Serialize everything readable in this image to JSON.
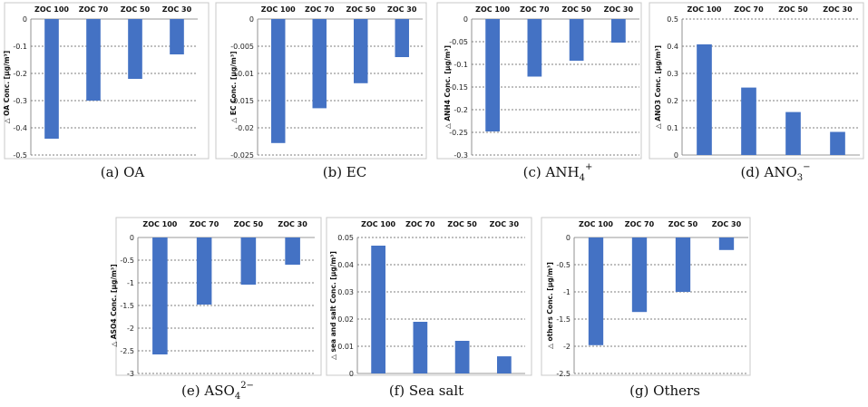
{
  "bar_color": "#4472c4",
  "chart_data": [
    {
      "id": "oa",
      "type": "bar",
      "categories": [
        "ZOC 100",
        "ZOC 70",
        "ZOC 50",
        "ZOC 30"
      ],
      "values": [
        -0.44,
        -0.3,
        -0.22,
        -0.13
      ],
      "ylim": [
        -0.5,
        0
      ],
      "yticks": [
        "0",
        "-0.1",
        "-0.2",
        "-0.3",
        "-0.4",
        "-0.5"
      ],
      "ylabel": "△ OA Conc. [µg/m³]",
      "caption": "(a) OA",
      "caption_main": "(a) OA",
      "caption_sub": "",
      "caption_sup": "",
      "caption_tail": ""
    },
    {
      "id": "ec",
      "type": "bar",
      "categories": [
        "ZOC 100",
        "ZOC 70",
        "ZOC 50",
        "ZOC 30"
      ],
      "values": [
        -0.0228,
        -0.0164,
        -0.0118,
        -0.007
      ],
      "ylim": [
        -0.025,
        0
      ],
      "yticks": [
        "0",
        "-0.005",
        "-0.01",
        "-0.015",
        "-0.02",
        "-0.025"
      ],
      "ylabel": "△ EC Conc. [µg/m³]",
      "caption": "(b) EC",
      "caption_main": "(b) EC",
      "caption_sub": "",
      "caption_sup": "",
      "caption_tail": ""
    },
    {
      "id": "anh4",
      "type": "bar",
      "categories": [
        "ZOC 100",
        "ZOC 70",
        "ZOC 50",
        "ZOC 30"
      ],
      "values": [
        -0.248,
        -0.127,
        -0.092,
        -0.052
      ],
      "ylim": [
        -0.3,
        0
      ],
      "yticks": [
        "0",
        "-0.05",
        "-0.1",
        "-0.15",
        "-0.2",
        "-0.25",
        "-0.3"
      ],
      "ylabel": "△ ANH4 Conc. [µg/m³]",
      "caption": "(c) ANH4+",
      "caption_main": "(c) ANH",
      "caption_sub": "4",
      "caption_sup": "+",
      "caption_tail": ""
    },
    {
      "id": "ano3",
      "type": "bar",
      "categories": [
        "ZOC 100",
        "ZOC 70",
        "ZOC 50",
        "ZOC 30"
      ],
      "values": [
        0.407,
        0.248,
        0.158,
        0.085
      ],
      "ylim": [
        0,
        0.5
      ],
      "yticks": [
        "0.5",
        "0.4",
        "0.3",
        "0.2",
        "0.1",
        "0"
      ],
      "ylabel": "△ ANO3 Conc. [µg/m³]",
      "caption": "(d) ANO3−",
      "caption_main": "(d) ANO",
      "caption_sub": "3",
      "caption_sup": "−",
      "caption_tail": ""
    },
    {
      "id": "aso4",
      "type": "bar",
      "categories": [
        "ZOC 100",
        "ZOC 70",
        "ZOC 50",
        "ZOC 30"
      ],
      "values": [
        -2.58,
        -1.48,
        -1.04,
        -0.6
      ],
      "ylim": [
        -3,
        0
      ],
      "yticks": [
        "0",
        "-0.5",
        "-1",
        "-1.5",
        "-2",
        "-2.5",
        "-3"
      ],
      "ylabel": "△ ASO4 Conc. [µg/m³]",
      "caption": "(e) ASO42−",
      "caption_main": "(e) ASO",
      "caption_sub": "4",
      "caption_sup": "2−",
      "caption_tail": ""
    },
    {
      "id": "seasalt",
      "type": "bar",
      "categories": [
        "ZOC 100",
        "ZOC 70",
        "ZOC 50",
        "ZOC 30"
      ],
      "values": [
        0.047,
        0.019,
        0.012,
        0.0063
      ],
      "ylim": [
        0,
        0.05
      ],
      "yticks": [
        "0.05",
        "0.04",
        "0.03",
        "0.02",
        "0.01",
        "0"
      ],
      "ylabel": "△ sea and salt Conc. [µg/m³]",
      "caption": "(f) Sea salt",
      "caption_main": "(f) Sea salt",
      "caption_sub": "",
      "caption_sup": "",
      "caption_tail": ""
    },
    {
      "id": "others",
      "type": "bar",
      "categories": [
        "ZOC 100",
        "ZOC 70",
        "ZOC 50",
        "ZOC 30"
      ],
      "values": [
        -1.98,
        -1.37,
        -1.0,
        -0.23
      ],
      "ylim": [
        -2.5,
        0
      ],
      "yticks": [
        "0",
        "-0.5",
        "-1",
        "-1.5",
        "-2",
        "-2.5"
      ],
      "ylabel": "△ others Conc. [µg/m³]",
      "caption": "(g) Others",
      "caption_main": "(g) Others",
      "caption_sub": "",
      "caption_sup": "",
      "caption_tail": ""
    }
  ]
}
